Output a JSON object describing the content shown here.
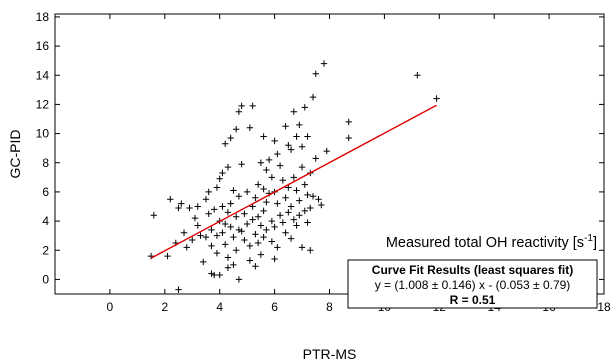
{
  "chart_data": {
    "type": "scatter",
    "xlabel": "PTR-MS",
    "ylabel": "GC-PID",
    "xlim": [
      -2,
      18
    ],
    "ylim": [
      -1,
      18.2
    ],
    "xticks": [
      0,
      2,
      4,
      6,
      8,
      10,
      12,
      14,
      16,
      18
    ],
    "yticks": [
      0,
      2,
      4,
      6,
      8,
      10,
      12,
      14,
      16,
      18
    ],
    "grid": false,
    "marker": "+",
    "point_color": "#000000",
    "fit_color": "#e00000",
    "annotation": {
      "text": "Measured total OH reactivity [s",
      "sup": "-1",
      "close": "]"
    },
    "fit_box": {
      "title": "Curve Fit Results (least squares fit)",
      "equation": "y = (1.008 ± 0.146) x - (0.053 ± 0.79)",
      "r_label": "R = 0.51"
    },
    "fit": {
      "slope": 1.008,
      "intercept": -0.053,
      "x_range": [
        1.5,
        11.9
      ]
    },
    "points": [
      [
        1.5,
        1.6
      ],
      [
        1.6,
        4.4
      ],
      [
        2.1,
        1.6
      ],
      [
        2.2,
        5.5
      ],
      [
        2.4,
        2.5
      ],
      [
        2.5,
        4.9
      ],
      [
        2.6,
        5.2
      ],
      [
        2.5,
        -0.7
      ],
      [
        2.7,
        3.2
      ],
      [
        2.8,
        2.2
      ],
      [
        2.9,
        4.9
      ],
      [
        3.0,
        2.7
      ],
      [
        3.1,
        4.2
      ],
      [
        3.2,
        3.7
      ],
      [
        3.2,
        5.0
      ],
      [
        3.3,
        3.0
      ],
      [
        3.4,
        1.2
      ],
      [
        3.5,
        2.9
      ],
      [
        3.5,
        5.5
      ],
      [
        3.6,
        6.0
      ],
      [
        3.6,
        4.5
      ],
      [
        3.7,
        3.4
      ],
      [
        3.7,
        2.3
      ],
      [
        3.7,
        0.4
      ],
      [
        3.8,
        4.8
      ],
      [
        3.8,
        0.3
      ],
      [
        3.9,
        6.3
      ],
      [
        3.9,
        3.0
      ],
      [
        3.9,
        1.8
      ],
      [
        4.0,
        6.9
      ],
      [
        4.0,
        4.0
      ],
      [
        4.0,
        0.3
      ],
      [
        4.1,
        7.3
      ],
      [
        4.1,
        5.0
      ],
      [
        4.1,
        3.2
      ],
      [
        4.2,
        9.3
      ],
      [
        4.2,
        3.8
      ],
      [
        4.2,
        2.4
      ],
      [
        4.3,
        7.7
      ],
      [
        4.3,
        4.6
      ],
      [
        4.3,
        1.5
      ],
      [
        4.3,
        0.8
      ],
      [
        4.4,
        9.7
      ],
      [
        4.4,
        5.2
      ],
      [
        4.4,
        3.6
      ],
      [
        4.5,
        6.1
      ],
      [
        4.5,
        2.9
      ],
      [
        4.5,
        1.0
      ],
      [
        4.6,
        10.3
      ],
      [
        4.6,
        4.3
      ],
      [
        4.6,
        2.0
      ],
      [
        4.7,
        11.5
      ],
      [
        4.7,
        5.7
      ],
      [
        4.7,
        3.4
      ],
      [
        4.7,
        0.0
      ],
      [
        4.8,
        11.9
      ],
      [
        4.8,
        7.9
      ],
      [
        4.8,
        3.3
      ],
      [
        4.9,
        4.5
      ],
      [
        4.9,
        2.7
      ],
      [
        5.0,
        6.0
      ],
      [
        5.0,
        3.8
      ],
      [
        5.1,
        10.4
      ],
      [
        5.1,
        2.3
      ],
      [
        5.1,
        1.3
      ],
      [
        5.2,
        11.9
      ],
      [
        5.2,
        5.0
      ],
      [
        5.2,
        4.1
      ],
      [
        5.3,
        5.6
      ],
      [
        5.3,
        3.1
      ],
      [
        5.3,
        0.9
      ],
      [
        5.4,
        6.5
      ],
      [
        5.4,
        4.3
      ],
      [
        5.4,
        2.5
      ],
      [
        5.5,
        8.0
      ],
      [
        5.5,
        3.7
      ],
      [
        5.5,
        1.7
      ],
      [
        5.6,
        9.8
      ],
      [
        5.6,
        6.2
      ],
      [
        5.6,
        4.7
      ],
      [
        5.6,
        2.9
      ],
      [
        5.7,
        7.5
      ],
      [
        5.7,
        5.3
      ],
      [
        5.7,
        3.4
      ],
      [
        5.8,
        8.2
      ],
      [
        5.8,
        5.9
      ],
      [
        5.9,
        7.0
      ],
      [
        5.9,
        4.0
      ],
      [
        5.9,
        2.6
      ],
      [
        6.0,
        9.5
      ],
      [
        6.0,
        6.0
      ],
      [
        6.0,
        3.6
      ],
      [
        6.0,
        1.4
      ],
      [
        6.1,
        8.6
      ],
      [
        6.1,
        5.2
      ],
      [
        6.1,
        2.2
      ],
      [
        6.2,
        7.8
      ],
      [
        6.2,
        4.4
      ],
      [
        6.3,
        6.8
      ],
      [
        6.3,
        3.9
      ],
      [
        6.4,
        10.5
      ],
      [
        6.4,
        5.6
      ],
      [
        6.4,
        3.2
      ],
      [
        6.5,
        9.2
      ],
      [
        6.5,
        6.3
      ],
      [
        6.5,
        4.6
      ],
      [
        6.6,
        8.9
      ],
      [
        6.6,
        5.0
      ],
      [
        6.6,
        2.8
      ],
      [
        6.7,
        11.5
      ],
      [
        6.7,
        7.0
      ],
      [
        6.7,
        4.1
      ],
      [
        6.8,
        9.8
      ],
      [
        6.8,
        6.1
      ],
      [
        6.8,
        3.7
      ],
      [
        6.9,
        10.6
      ],
      [
        6.9,
        5.4
      ],
      [
        6.9,
        4.4
      ],
      [
        7.0,
        9.1
      ],
      [
        7.0,
        7.7
      ],
      [
        7.0,
        2.2
      ],
      [
        7.1,
        11.8
      ],
      [
        7.1,
        6.5
      ],
      [
        7.1,
        4.7
      ],
      [
        7.2,
        9.8
      ],
      [
        7.2,
        5.8
      ],
      [
        7.2,
        3.9
      ],
      [
        7.3,
        7.3
      ],
      [
        7.3,
        4.9
      ],
      [
        7.3,
        2.0
      ],
      [
        7.4,
        12.5
      ],
      [
        7.4,
        5.7
      ],
      [
        7.5,
        14.1
      ],
      [
        7.5,
        8.3
      ],
      [
        7.6,
        5.5
      ],
      [
        7.7,
        5.1
      ],
      [
        7.8,
        14.8
      ],
      [
        7.9,
        8.8
      ],
      [
        8.7,
        10.8
      ],
      [
        8.7,
        9.7
      ],
      [
        11.2,
        14.0
      ],
      [
        11.9,
        12.4
      ]
    ]
  }
}
